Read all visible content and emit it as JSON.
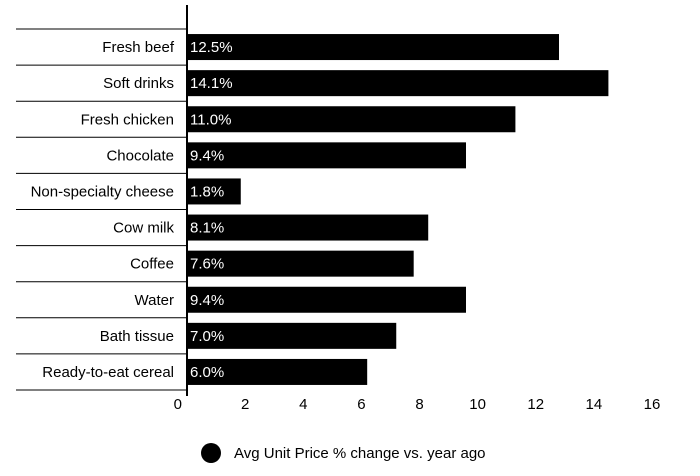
{
  "chart_data": {
    "type": "bar",
    "orientation": "horizontal",
    "title": "",
    "xlabel": "",
    "ylabel": "",
    "xlim": [
      0,
      16
    ],
    "xticks": [
      0,
      2,
      4,
      6,
      8,
      10,
      12,
      14,
      16
    ],
    "grid": false,
    "legend_position": "bottom",
    "bar_color": "#000000",
    "label_color": "#ffffff",
    "categories": [
      "Fresh beef",
      "Soft drinks",
      "Fresh chicken",
      "Chocolate",
      "Non-specialty cheese",
      "Cow milk",
      "Coffee",
      "Water",
      "Bath tissue",
      "Ready-to-eat cereal"
    ],
    "series": [
      {
        "name": "Avg Unit Price % change vs. year ago",
        "values": [
          12.5,
          14.1,
          11.0,
          9.4,
          1.8,
          8.1,
          7.6,
          9.4,
          7.0,
          6.0
        ],
        "drawn_values": [
          12.8,
          14.5,
          11.3,
          9.6,
          1.85,
          8.3,
          7.8,
          9.6,
          7.2,
          6.2
        ],
        "labels": [
          "12.5%",
          "14.1%",
          "11.0%",
          "9.4%",
          "1.8%",
          "8.1%",
          "7.6%",
          "9.4%",
          "7.0%",
          "6.0%"
        ]
      }
    ]
  }
}
